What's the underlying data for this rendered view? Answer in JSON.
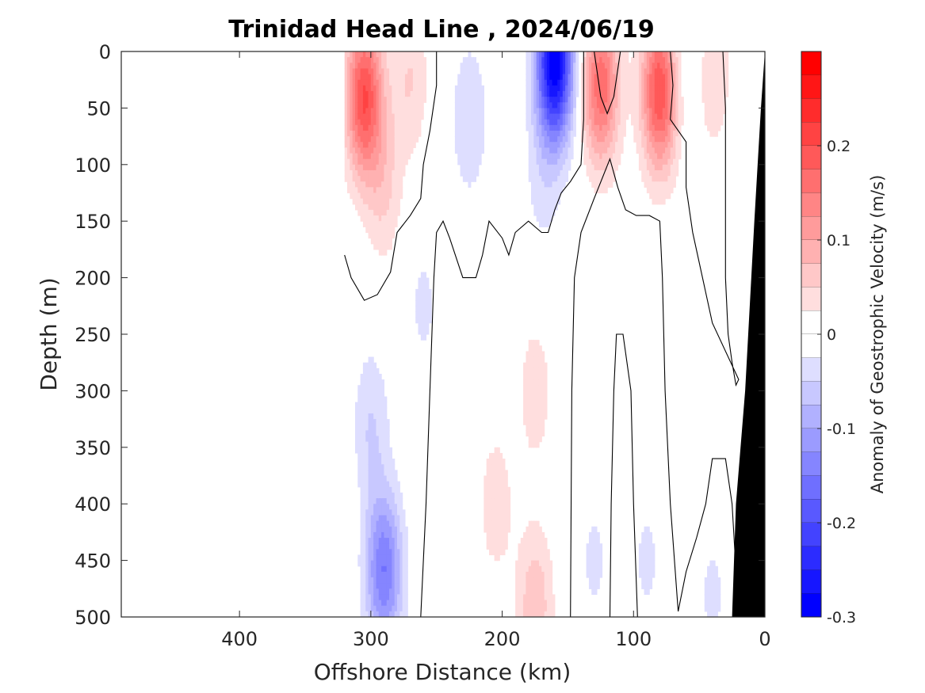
{
  "chart_data": {
    "type": "heatmap",
    "subtype": "filled-contour section",
    "title": "Trinidad Head Line , 2024/06/19",
    "xlabel": "Offshore Distance (km)",
    "ylabel": "Depth (m)",
    "xlim": [
      490,
      0
    ],
    "x_reversed": true,
    "ylim": [
      0,
      500
    ],
    "y_reversed": true,
    "xticks": [
      400,
      300,
      200,
      100,
      0
    ],
    "yticks": [
      0,
      50,
      100,
      150,
      200,
      250,
      300,
      350,
      400,
      450,
      500
    ],
    "x_tick_labels": [
      "400",
      "300",
      "200",
      "100",
      "0"
    ],
    "y_tick_labels": [
      "0",
      "50",
      "100",
      "150",
      "200",
      "250",
      "300",
      "350",
      "400",
      "450",
      "500"
    ],
    "colorbar": {
      "label": "Anomaly of Geostrophic Velocity (m/s)",
      "range": [
        -0.3,
        0.3
      ],
      "level_step": 0.025,
      "ticks": [
        -0.3,
        -0.2,
        -0.1,
        0,
        0.1,
        0.2
      ],
      "tick_labels": [
        "-0.3",
        "-0.2",
        "-0.1",
        "0",
        "0.1",
        "0.2"
      ],
      "negative_color": "#0000ff",
      "positive_color": "#ff0000",
      "zero_color": "#ffffff"
    },
    "data_coverage_km": [
      0,
      320
    ],
    "seafloor_mask_color": "#000000",
    "features": [
      {
        "x_km": 305,
        "depth_m": 40,
        "value": 0.2
      },
      {
        "x_km": 290,
        "depth_m": 120,
        "value": 0.05
      },
      {
        "x_km": 270,
        "depth_m": 25,
        "value": 0.05
      },
      {
        "x_km": 225,
        "depth_m": 60,
        "value": -0.05
      },
      {
        "x_km": 160,
        "depth_m": 10,
        "value": -0.3
      },
      {
        "x_km": 170,
        "depth_m": 120,
        "value": -0.03
      },
      {
        "x_km": 125,
        "depth_m": 30,
        "value": 0.17
      },
      {
        "x_km": 80,
        "depth_m": 35,
        "value": 0.2
      },
      {
        "x_km": 60,
        "depth_m": 10,
        "value": -0.03
      },
      {
        "x_km": 40,
        "depth_m": 20,
        "value": 0.05
      },
      {
        "x_km": 290,
        "depth_m": 460,
        "value": -0.15
      },
      {
        "x_km": 300,
        "depth_m": 330,
        "value": -0.05
      },
      {
        "x_km": 260,
        "depth_m": 225,
        "value": -0.03
      },
      {
        "x_km": 205,
        "depth_m": 400,
        "value": 0.04
      },
      {
        "x_km": 175,
        "depth_m": 300,
        "value": 0.04
      },
      {
        "x_km": 175,
        "depth_m": 490,
        "value": 0.07
      },
      {
        "x_km": 130,
        "depth_m": 450,
        "value": -0.03
      },
      {
        "x_km": 90,
        "depth_m": 450,
        "value": -0.03
      },
      {
        "x_km": 40,
        "depth_m": 480,
        "value": -0.03
      }
    ],
    "zero_contours": [
      [
        [
          320,
          180
        ],
        [
          315,
          200
        ],
        [
          305,
          220
        ],
        [
          295,
          215
        ],
        [
          285,
          195
        ],
        [
          280,
          160
        ],
        [
          270,
          145
        ],
        [
          262,
          130
        ],
        [
          260,
          100
        ],
        [
          255,
          70
        ],
        [
          250,
          30
        ],
        [
          250,
          0
        ]
      ],
      [
        [
          262,
          500
        ],
        [
          258,
          400
        ],
        [
          255,
          300
        ],
        [
          252,
          200
        ],
        [
          250,
          160
        ],
        [
          245,
          150
        ],
        [
          240,
          165
        ],
        [
          230,
          200
        ],
        [
          220,
          200
        ],
        [
          215,
          180
        ],
        [
          210,
          150
        ],
        [
          200,
          165
        ],
        [
          195,
          180
        ],
        [
          190,
          160
        ],
        [
          180,
          150
        ],
        [
          170,
          160
        ],
        [
          165,
          160
        ],
        [
          160,
          140
        ],
        [
          155,
          125
        ],
        [
          148,
          115
        ],
        [
          140,
          100
        ],
        [
          138,
          60
        ],
        [
          138,
          0
        ]
      ],
      [
        [
          148,
          500
        ],
        [
          147,
          300
        ],
        [
          145,
          200
        ],
        [
          140,
          160
        ],
        [
          130,
          130
        ],
        [
          118,
          95
        ],
        [
          112,
          120
        ],
        [
          106,
          140
        ],
        [
          98,
          145
        ],
        [
          88,
          145
        ],
        [
          80,
          150
        ],
        [
          78,
          200
        ],
        [
          76,
          300
        ],
        [
          72,
          400
        ],
        [
          66,
          495
        ]
      ],
      [
        [
          97,
          500
        ],
        [
          100,
          400
        ],
        [
          102,
          300
        ],
        [
          108,
          250
        ],
        [
          113,
          250
        ],
        [
          115,
          300
        ],
        [
          117,
          400
        ],
        [
          118,
          500
        ]
      ],
      [
        [
          130,
          0
        ],
        [
          125,
          40
        ],
        [
          120,
          55
        ],
        [
          115,
          40
        ],
        [
          110,
          0
        ]
      ],
      [
        [
          20,
          500
        ],
        [
          25,
          400
        ],
        [
          30,
          360
        ],
        [
          40,
          360
        ],
        [
          45,
          400
        ],
        [
          52,
          430
        ],
        [
          60,
          460
        ],
        [
          66,
          495
        ]
      ],
      [
        [
          32,
          0
        ],
        [
          30,
          50
        ],
        [
          30,
          120
        ],
        [
          30,
          200
        ],
        [
          28,
          250
        ],
        [
          25,
          275
        ],
        [
          22,
          295
        ],
        [
          20,
          290
        ],
        [
          40,
          240
        ],
        [
          55,
          160
        ],
        [
          60,
          120
        ],
        [
          60,
          80
        ],
        [
          72,
          60
        ],
        [
          70,
          30
        ],
        [
          72,
          0
        ]
      ]
    ],
    "seafloor_outline_km": [
      [
        0,
        0
      ],
      [
        0,
        500
      ],
      [
        25,
        500
      ],
      [
        22,
        400
      ],
      [
        15,
        300
      ],
      [
        8,
        150
      ],
      [
        3,
        50
      ],
      [
        0,
        0
      ]
    ]
  }
}
